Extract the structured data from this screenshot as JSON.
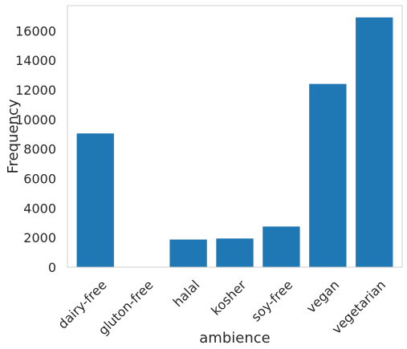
{
  "chart_data": {
    "type": "bar",
    "title": "",
    "xlabel": "ambience",
    "ylabel": "Frequency",
    "categories": [
      "dairy-free",
      "gluton-free",
      "halal",
      "kosher",
      "soy-free",
      "vegan",
      "vegetarian"
    ],
    "values": [
      9050,
      10,
      1870,
      1940,
      2750,
      12400,
      16900
    ],
    "ylim": [
      0,
      17700
    ],
    "yticks": [
      0,
      2000,
      4000,
      6000,
      8000,
      10000,
      12000,
      14000,
      16000
    ],
    "grid": false,
    "bar_color": "#1f77b4",
    "legend": null
  }
}
